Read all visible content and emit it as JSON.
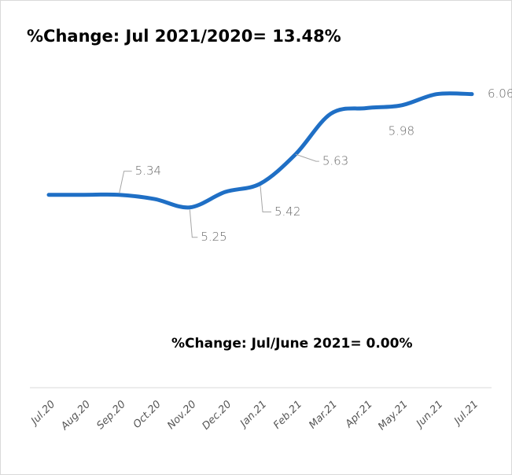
{
  "chart_data": {
    "type": "line",
    "title": "%Change: Jul 2021/2020= 13.48%",
    "annotation": "%Change: Jul/June 2021= 0.00%",
    "categories": [
      "Jul.20",
      "Aug.20",
      "Sep.20",
      "Oct.20",
      "Nov.20",
      "Dec.20",
      "Jan.21",
      "Feb.21",
      "Mar.21",
      "Apr.21",
      "May.21",
      "Jun.21",
      "Jul.21"
    ],
    "series": [
      {
        "name": null,
        "color": "#1f6fc5",
        "values": [
          5.34,
          5.34,
          5.34,
          5.31,
          5.25,
          5.36,
          5.42,
          5.63,
          5.92,
          5.96,
          5.98,
          6.06,
          6.06
        ],
        "value_labels": [
          null,
          null,
          "5.34",
          null,
          "5.25",
          null,
          "5.42",
          "5.63",
          null,
          null,
          "5.98",
          null,
          "6.06"
        ]
      }
    ],
    "ylim": [
      4.0,
      6.3
    ]
  }
}
